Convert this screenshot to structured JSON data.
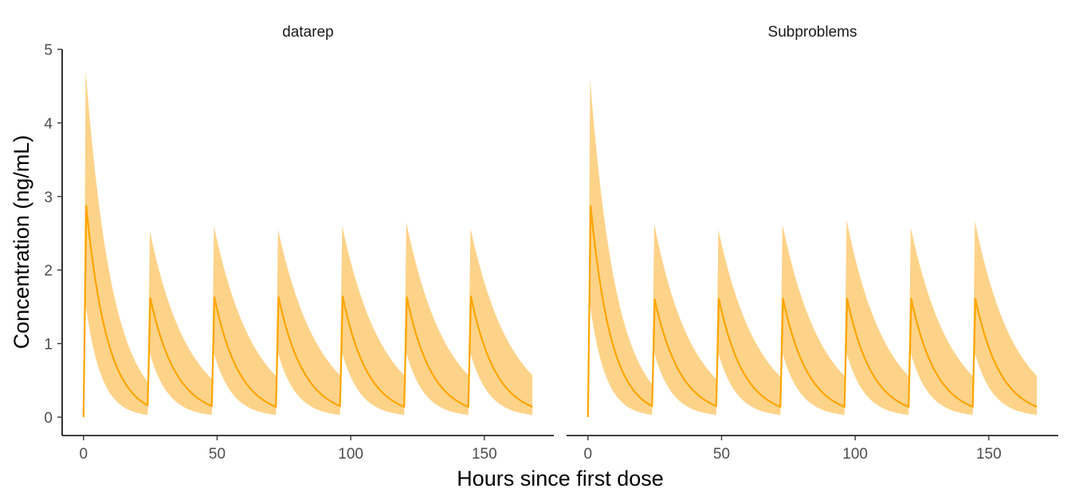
{
  "chart_data": {
    "type": "area",
    "xlabel": "Hours since first dose",
    "ylabel": "Concentration (ng/mL)",
    "xlim": [
      -8,
      176
    ],
    "ylim": [
      -0.25,
      5
    ],
    "xticks": [
      0,
      50,
      100,
      150
    ],
    "yticks": [
      0,
      1,
      2,
      3,
      4,
      5
    ],
    "grid": false,
    "legend": "none",
    "colors": {
      "line": "#FFA500",
      "band": "#FDD38A",
      "axis": "#000000",
      "tick_text": "#4d4d4d"
    },
    "dose_times": [
      0,
      24,
      48,
      72,
      96,
      120,
      144
    ],
    "t_end": 168,
    "panels": [
      {
        "strip": "datarep",
        "median": {
          "peak": [
            2.87,
            1.62,
            1.63,
            1.63,
            1.64,
            1.63,
            1.64
          ],
          "trough": [
            0.16,
            0.15,
            0.14,
            0.15,
            0.14,
            0.14,
            0.14
          ]
        },
        "upper": {
          "peak": [
            4.72,
            2.53,
            2.6,
            2.55,
            2.6,
            2.65,
            2.57
          ],
          "trough": [
            0.48,
            0.52,
            0.56,
            0.57,
            0.57,
            0.57,
            0.57
          ]
        },
        "lower": {
          "peak": [
            1.52,
            0.87,
            0.87,
            0.87,
            0.87,
            0.87,
            0.87
          ],
          "trough": [
            0.03,
            0.03,
            0.03,
            0.03,
            0.03,
            0.03,
            0.03
          ]
        }
      },
      {
        "strip": "Subproblems",
        "median": {
          "peak": [
            2.87,
            1.6,
            1.61,
            1.61,
            1.61,
            1.61,
            1.61
          ],
          "trough": [
            0.15,
            0.15,
            0.14,
            0.14,
            0.14,
            0.14,
            0.14
          ]
        },
        "upper": {
          "peak": [
            4.6,
            2.63,
            2.55,
            2.62,
            2.68,
            2.58,
            2.67
          ],
          "trough": [
            0.45,
            0.52,
            0.55,
            0.56,
            0.56,
            0.56,
            0.56
          ]
        },
        "lower": {
          "peak": [
            1.52,
            0.87,
            0.87,
            0.87,
            0.87,
            0.87,
            0.87
          ],
          "trough": [
            0.03,
            0.03,
            0.03,
            0.03,
            0.03,
            0.03,
            0.03
          ]
        }
      }
    ]
  }
}
